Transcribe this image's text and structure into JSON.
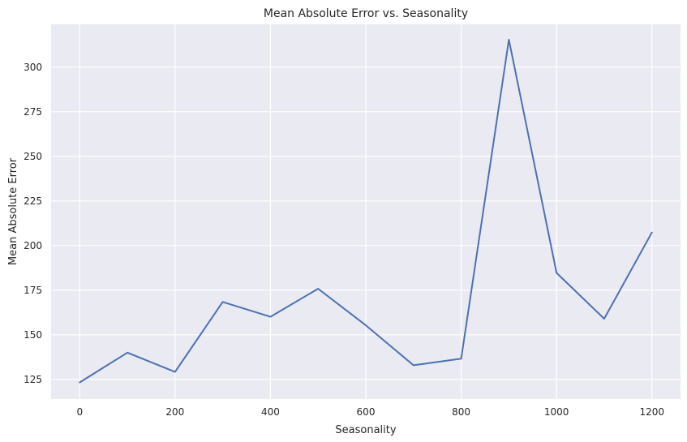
{
  "chart_data": {
    "type": "line",
    "title": "Mean Absolute Error vs. Seasonality",
    "xlabel": "Seasonality",
    "ylabel": "Mean Absolute Error",
    "xlim": [
      -60,
      1260
    ],
    "ylim": [
      114,
      324
    ],
    "x_ticks": [
      0,
      200,
      400,
      600,
      800,
      1000,
      1200
    ],
    "y_ticks": [
      125,
      150,
      175,
      200,
      225,
      250,
      275,
      300
    ],
    "grid": true,
    "legend": "none",
    "series": [
      {
        "x": [
          0,
          100,
          200,
          300,
          400,
          500,
          600,
          700,
          800,
          900,
          1000,
          1100,
          1200
        ],
        "values": [
          123.3,
          140.0,
          129.2,
          168.4,
          160.1,
          175.8,
          155.3,
          132.9,
          136.6,
          315.4,
          184.7,
          159.0,
          207.3
        ]
      }
    ],
    "colors": {
      "line": "#4c72b0",
      "plot_background": "#eaeaf2",
      "grid": "#ffffff",
      "text": "#262626"
    }
  }
}
